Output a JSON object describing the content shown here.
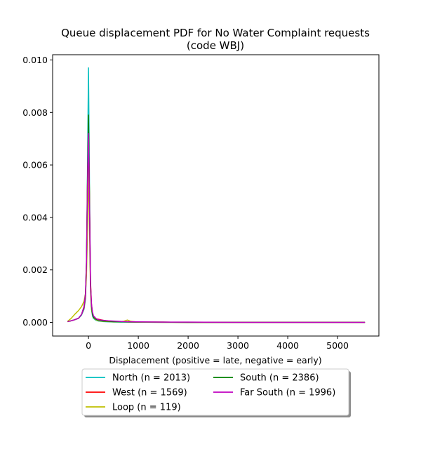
{
  "chart_data": {
    "type": "line",
    "title_lines": [
      "Queue displacement PDF for No Water Complaint  requests",
      "(code WBJ)"
    ],
    "xlabel": "Displacement (positive = late, negative = early)",
    "ylabel": "",
    "xlim": [
      -720,
      5830
    ],
    "ylim": [
      -0.00052,
      0.0102
    ],
    "xticks": [
      0,
      1000,
      2000,
      3000,
      4000,
      5000
    ],
    "xtick_labels": [
      "0",
      "1000",
      "2000",
      "3000",
      "4000",
      "5000"
    ],
    "yticks": [
      0.0,
      0.002,
      0.004,
      0.006,
      0.008,
      0.01
    ],
    "ytick_labels": [
      "0.000",
      "0.002",
      "0.004",
      "0.006",
      "0.008",
      "0.010"
    ],
    "grid": false,
    "legend_position": "below plot, two columns",
    "series": [
      {
        "name": "North (n = 2013)",
        "color": "#00bfbf",
        "x": [
          -420,
          -350,
          -280,
          -200,
          -140,
          -90,
          -60,
          -40,
          -20,
          0,
          20,
          40,
          60,
          80,
          100,
          150,
          200,
          300,
          400,
          500,
          700,
          1000,
          1500,
          2000,
          3000,
          4000,
          5000,
          5550
        ],
        "y": [
          3e-05,
          6e-05,
          0.0001,
          0.00015,
          0.00028,
          0.0005,
          0.0009,
          0.0021,
          0.0058,
          0.0097,
          0.0052,
          0.0015,
          0.0005,
          0.00025,
          0.00015,
          8e-05,
          5e-05,
          3e-05,
          2e-05,
          1e-05,
          1e-05,
          1e-05,
          0.0,
          0.0,
          0.0,
          0.0,
          0.0,
          0.0
        ]
      },
      {
        "name": "West (n = 1569)",
        "color": "#ff0000",
        "x": [
          -420,
          -350,
          -280,
          -200,
          -140,
          -90,
          -60,
          -40,
          -20,
          0,
          20,
          40,
          60,
          80,
          100,
          150,
          200,
          300,
          400,
          500,
          700,
          1000,
          1500,
          2000,
          3000,
          4000,
          5000,
          5550
        ],
        "y": [
          3e-05,
          6e-05,
          0.0001,
          0.00016,
          0.0003,
          0.00055,
          0.001,
          0.0022,
          0.0052,
          0.0076,
          0.0048,
          0.0016,
          0.0007,
          0.00035,
          0.00022,
          0.00014,
          0.00012,
          8e-05,
          5e-05,
          3e-05,
          2e-05,
          1e-05,
          1e-05,
          0.0,
          0.0,
          0.0,
          0.0,
          0.0
        ]
      },
      {
        "name": "Loop (n = 119)",
        "color": "#bfbf00",
        "x": [
          -420,
          -350,
          -280,
          -200,
          -140,
          -90,
          -60,
          -40,
          -20,
          0,
          20,
          40,
          60,
          80,
          100,
          150,
          200,
          300,
          400,
          500,
          600,
          700,
          780,
          850,
          1000,
          1500,
          2000,
          3000,
          4000,
          5000,
          5550
        ],
        "y": [
          4e-05,
          0.00015,
          0.0003,
          0.00045,
          0.0006,
          0.0008,
          0.0011,
          0.0018,
          0.0035,
          0.0059,
          0.0036,
          0.0012,
          0.0005,
          0.0003,
          0.00018,
          0.0001,
          6e-05,
          4e-05,
          3e-05,
          2e-05,
          2e-05,
          4e-05,
          9e-05,
          4e-05,
          1e-05,
          0.0,
          0.0,
          0.0,
          0.0,
          0.0,
          0.0
        ]
      },
      {
        "name": "South (n = 2386)",
        "color": "#008000",
        "x": [
          -420,
          -350,
          -280,
          -200,
          -140,
          -90,
          -60,
          -40,
          -20,
          0,
          20,
          40,
          60,
          80,
          100,
          150,
          200,
          300,
          400,
          500,
          700,
          1000,
          1500,
          2000,
          3000,
          4000,
          5000,
          5550
        ],
        "y": [
          3e-05,
          6e-05,
          0.0001,
          0.00016,
          0.0003,
          0.0006,
          0.0011,
          0.0024,
          0.0055,
          0.0079,
          0.0047,
          0.0014,
          0.0006,
          0.0003,
          0.0002,
          0.00012,
          8e-05,
          5e-05,
          4e-05,
          3e-05,
          2e-05,
          1e-05,
          1e-05,
          0.0,
          0.0,
          0.0,
          0.0,
          0.0
        ]
      },
      {
        "name": "Far South (n = 1996)",
        "color": "#bf00bf",
        "x": [
          -420,
          -350,
          -280,
          -200,
          -140,
          -90,
          -60,
          -40,
          -20,
          0,
          20,
          40,
          60,
          80,
          100,
          150,
          200,
          300,
          400,
          500,
          700,
          1000,
          1500,
          2000,
          3000,
          4000,
          5000,
          5550
        ],
        "y": [
          3e-05,
          6e-05,
          0.0001,
          0.00016,
          0.0003,
          0.0006,
          0.0011,
          0.0023,
          0.0052,
          0.0072,
          0.0045,
          0.0015,
          0.0007,
          0.0004,
          0.00025,
          0.00015,
          0.0001,
          8e-05,
          6e-05,
          5e-05,
          3e-05,
          2e-05,
          1e-05,
          1e-05,
          0.0,
          0.0,
          0.0,
          0.0
        ]
      }
    ],
    "legend_order": [
      0,
      3,
      1,
      4,
      2
    ]
  }
}
